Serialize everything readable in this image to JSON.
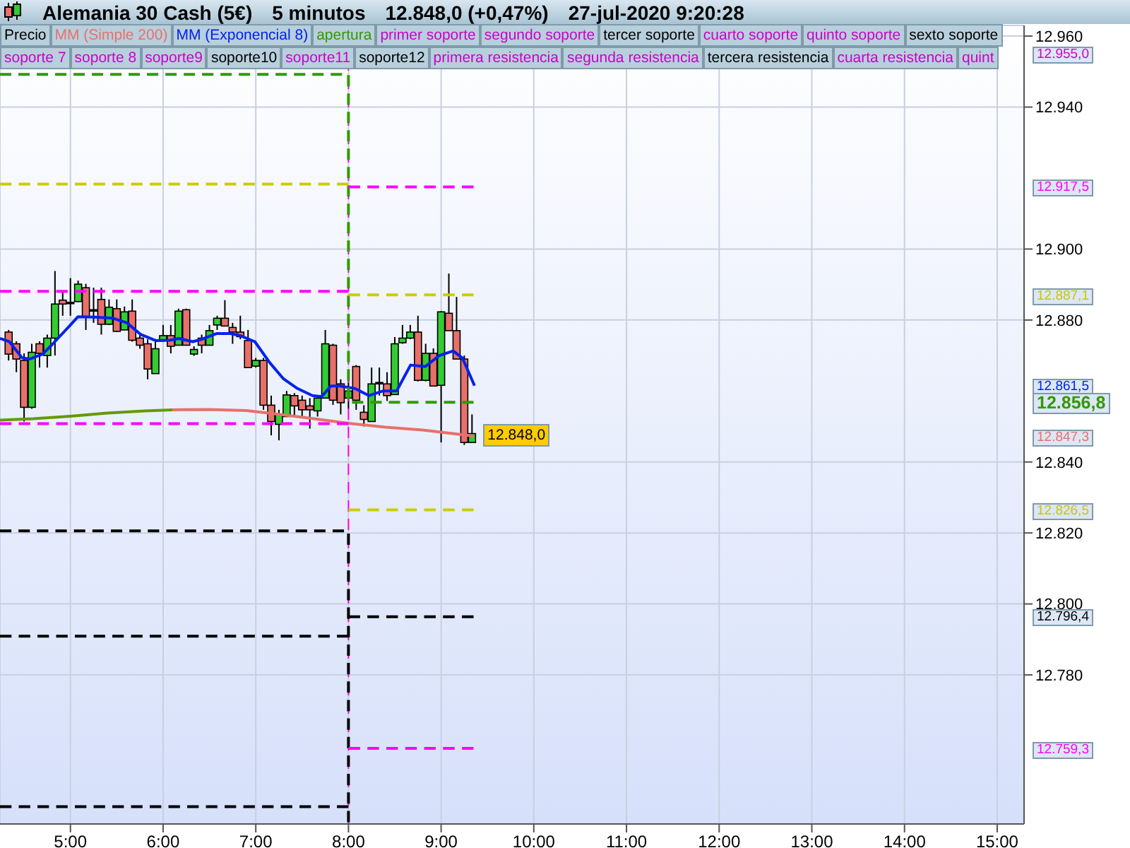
{
  "chart_data": {
    "type": "candlestick",
    "title": "Alemania 30 Cash (5€)",
    "subtitle": "5 minutos",
    "x": [
      4.3333,
      4.4167,
      4.5,
      4.5833,
      4.6667,
      4.75,
      4.8333,
      4.9167,
      5,
      5.0833,
      5.1667,
      5.25,
      5.3333,
      5.4167,
      5.5,
      5.5833,
      5.6667,
      5.75,
      5.8333,
      5.9167,
      6,
      6.0833,
      6.1667,
      6.25,
      6.3333,
      6.4167,
      6.5,
      6.5833,
      6.6667,
      6.75,
      6.8333,
      6.9167,
      7,
      7.0833,
      7.1667,
      7.25,
      7.3333,
      7.4167,
      7.5,
      7.5833,
      7.6667,
      7.75,
      7.8333,
      7.9167,
      8,
      8.0833,
      8.1667,
      8.25,
      8.3333,
      8.4167,
      8.5,
      8.5833,
      8.6667,
      8.75,
      8.8333,
      8.9167,
      9,
      9.0833,
      9.1667,
      9.25,
      9.3333
    ],
    "ohlc": [
      [
        12876.6,
        12877.2,
        12868.6,
        12870.4
      ],
      [
        12873.3,
        12874,
        12865.3,
        12869
      ],
      [
        12868.6,
        12870.6,
        12851.4,
        12855.4
      ],
      [
        12855.4,
        12873.3,
        12855,
        12870.9
      ],
      [
        12873.3,
        12874,
        12866.6,
        12870.6
      ],
      [
        12870,
        12875.9,
        12866.6,
        12874.9
      ],
      [
        12874.9,
        12893.8,
        12870,
        12884.5
      ],
      [
        12885.6,
        12887.8,
        12881.2,
        12884.5
      ],
      [
        12885,
        12891.8,
        12881.2,
        12885
      ],
      [
        12885.2,
        12891.1,
        12885,
        12890.1
      ],
      [
        12889.1,
        12890.2,
        12877.2,
        12880.8
      ],
      [
        12882.9,
        12889.1,
        12879.2,
        12882.9
      ],
      [
        12885.8,
        12889.1,
        12875.9,
        12878.8
      ],
      [
        12878.8,
        12885.8,
        12878.6,
        12883.6
      ],
      [
        12883.2,
        12885.8,
        12876.6,
        12876.8
      ],
      [
        12877.2,
        12883.8,
        12877.2,
        12882.3
      ],
      [
        12882.5,
        12885.8,
        12873.9,
        12874.3
      ],
      [
        12874.9,
        12875.9,
        12871.9,
        12872.9
      ],
      [
        12873.3,
        12874.6,
        12863.3,
        12866.2
      ],
      [
        12864.9,
        12874.6,
        12864.9,
        12871.9
      ],
      [
        12874.3,
        12878.6,
        12873.9,
        12875.6
      ],
      [
        12875.6,
        12878.6,
        12870.6,
        12872.6
      ],
      [
        12872.9,
        12883.2,
        12872.9,
        12882.5
      ],
      [
        12882.9,
        12883.2,
        12872.9,
        12872.9
      ],
      [
        12870.4,
        12872.6,
        12869.9,
        12871.7
      ],
      [
        12874.9,
        12875.9,
        12870.6,
        12872.9
      ],
      [
        12872.9,
        12878.6,
        12872.9,
        12877
      ],
      [
        12878.6,
        12881.2,
        12877.2,
        12880.5
      ],
      [
        12880.5,
        12885.6,
        12878.3,
        12878.3
      ],
      [
        12877.9,
        12879.2,
        12873.3,
        12876.6
      ],
      [
        12876.6,
        12881.2,
        12874.6,
        12875.3
      ],
      [
        12874.2,
        12877.2,
        12866.6,
        12866.6
      ],
      [
        12867,
        12869.3,
        12866.6,
        12868.6
      ],
      [
        12868.6,
        12869.3,
        12854.7,
        12856
      ],
      [
        12856,
        12858.7,
        12847.5,
        12851.4
      ],
      [
        12850.6,
        12854.7,
        12846.1,
        12853.4
      ],
      [
        12852.8,
        12860,
        12852.8,
        12858.9
      ],
      [
        12858.7,
        12859.4,
        12852.8,
        12855.8
      ],
      [
        12857.4,
        12858.7,
        12852.8,
        12854.7
      ],
      [
        12855.8,
        12858,
        12849.4,
        12854.7
      ],
      [
        12854.4,
        12858.7,
        12852.8,
        12858
      ],
      [
        12858,
        12877.2,
        12858,
        12873.3
      ],
      [
        12872.9,
        12873.3,
        12856.1,
        12857.4
      ],
      [
        12862,
        12863.3,
        12853.4,
        12856.7
      ],
      [
        12858,
        12864,
        12855,
        12860
      ],
      [
        12866.9,
        12867.3,
        12854.7,
        12857.4
      ],
      [
        12854,
        12856,
        12850,
        12852
      ],
      [
        12851.4,
        12866.6,
        12851.4,
        12862
      ],
      [
        12862.4,
        12866.6,
        12858.7,
        12862.4
      ],
      [
        12862,
        12865.3,
        12857.2,
        12858.7
      ],
      [
        12859,
        12875.2,
        12859,
        12873.3
      ],
      [
        12873.6,
        12878.6,
        12873.3,
        12874.9
      ],
      [
        12874.9,
        12878.6,
        12874.6,
        12876.6
      ],
      [
        12876.6,
        12881.2,
        12862.7,
        12863
      ],
      [
        12863,
        12873.3,
        12862.7,
        12870.6
      ],
      [
        12870.6,
        12872,
        12861.4,
        12861.4
      ],
      [
        12861.6,
        12882.5,
        12845.5,
        12882.3
      ],
      [
        12881.9,
        12893.1,
        12877,
        12877
      ],
      [
        12877,
        12886.5,
        12869,
        12869
      ],
      [
        12869,
        12870,
        12844.8,
        12845.5
      ],
      [
        12845.5,
        12853.4,
        12845.5,
        12848
      ]
    ],
    "colors": [
      "#e8706a",
      "#e8706a",
      "#e8706a",
      "#33cc33",
      "#e8706a",
      "#33cc33",
      "#33cc33",
      "#e8706a",
      "#000000",
      "#33cc33",
      "#e8706a",
      "#000000",
      "#e8706a",
      "#33cc33",
      "#e8706a",
      "#33cc33",
      "#e8706a",
      "#e8706a",
      "#e8706a",
      "#33cc33",
      "#33cc33",
      "#e8706a",
      "#33cc33",
      "#e8706a",
      "#33cc33",
      "#e8706a",
      "#33cc33",
      "#33cc33",
      "#e8706a",
      "#e8706a",
      "#e8706a",
      "#e8706a",
      "#33cc33",
      "#e8706a",
      "#e8706a",
      "#33cc33",
      "#33cc33",
      "#e8706a",
      "#e8706a",
      "#e8706a",
      "#33cc33",
      "#33cc33",
      "#e8706a",
      "#e8706a",
      "#33cc33",
      "#e8706a",
      "#e8706a",
      "#33cc33",
      "#000000",
      "#e8706a",
      "#33cc33",
      "#33cc33",
      "#33cc33",
      "#e8706a",
      "#33cc33",
      "#e8706a",
      "#33cc33",
      "#e8706a",
      "#e8706a",
      "#e8706a",
      "#33cc33"
    ],
    "series": [
      {
        "type": "line",
        "color": "#669900",
        "line_style": "solid",
        "x": [
          4.24,
          4.6,
          5.0,
          5.4,
          5.8,
          6.1
        ],
        "values": [
          12851.8,
          12852.2,
          12852.9,
          12853.8,
          12854.4,
          12854.7
        ]
      },
      {
        "type": "line",
        "color": "#e8706a",
        "line_style": "solid",
        "x": [
          6.1,
          6.5,
          6.9,
          7.2,
          7.6,
          8.0,
          8.4,
          8.8,
          9.35
        ],
        "values": [
          12854.7,
          12854.8,
          12854.5,
          12853.6,
          12852.3,
          12850.9,
          12849.8,
          12849,
          12847.3
        ]
      },
      {
        "type": "line",
        "color": "#0022ee",
        "line_style": "solid",
        "x": [
          4.24,
          4.34,
          4.48,
          4.56,
          4.7,
          4.81,
          5.0,
          5.08,
          5.26,
          5.46,
          5.61,
          5.76,
          5.92,
          6.07,
          6.17,
          6.32,
          6.42,
          6.58,
          6.73,
          6.83,
          6.99,
          7.15,
          7.3,
          7.45,
          7.61,
          7.71,
          7.81,
          7.91,
          8.07,
          8.22,
          8.37,
          8.52,
          8.67,
          8.83,
          8.98,
          9.13,
          9.23,
          9.36
        ],
        "values": [
          12874.8,
          12873.9,
          12869.3,
          12869,
          12870.4,
          12873.3,
          12878.6,
          12880.9,
          12880.8,
          12880.5,
          12879.2,
          12875.9,
          12874.2,
          12874.3,
          12874.8,
          12873.9,
          12874.6,
          12876.2,
          12876.2,
          12875.6,
          12873.9,
          12868,
          12863.4,
          12860.7,
          12858.7,
          12858.4,
          12861.4,
          12861.4,
          12860.7,
          12858.7,
          12860,
          12860,
          12867.3,
          12866.9,
          12870,
          12871.3,
          12869.3,
          12861.5
        ]
      },
      {
        "type": "line",
        "color": "#339900",
        "line_style": "dashed",
        "x": [
          4.24,
          8,
          8,
          9.35
        ],
        "values": [
          12949.2,
          12949.2,
          12856.8,
          12856.8
        ]
      },
      {
        "type": "line",
        "color": "#cccc00",
        "line_style": "dashed",
        "x": [
          4.24,
          8
        ],
        "values": [
          12918.3,
          12918.3
        ]
      },
      {
        "type": "line",
        "color": "#ff00ff",
        "line_style": "dashed",
        "x": [
          4.24,
          8
        ],
        "values": [
          12888.1,
          12888.1
        ]
      },
      {
        "type": "line",
        "color": "#ff00ff",
        "line_style": "dashed",
        "x": [
          4.24,
          8
        ],
        "values": [
          12850.8,
          12850.8
        ]
      },
      {
        "type": "line",
        "color": "#000000",
        "line_style": "dashed",
        "x": [
          4.24,
          8,
          8
        ],
        "values": [
          12820.6,
          12820.6,
          12738.5
        ]
      },
      {
        "type": "line",
        "color": "#000000",
        "line_style": "dashed",
        "x": [
          4.24,
          8
        ],
        "values": [
          12790.9,
          12790.9
        ]
      },
      {
        "type": "line",
        "color": "#000000",
        "line_style": "dashed",
        "x": [
          4.24,
          8
        ],
        "values": [
          12742.9,
          12742.9
        ]
      },
      {
        "type": "line",
        "color": "#ff00ff",
        "line_style": "dashed",
        "x": [
          8,
          9.35
        ],
        "values": [
          12917.5,
          12917.5
        ]
      },
      {
        "type": "line",
        "color": "#cccc00",
        "line_style": "dashed",
        "x": [
          8,
          9.35
        ],
        "values": [
          12887.1,
          12887.1
        ]
      },
      {
        "type": "line",
        "color": "#cccc00",
        "line_style": "dashed",
        "x": [
          8,
          9.35
        ],
        "values": [
          12826.5,
          12826.5
        ]
      },
      {
        "type": "line",
        "color": "#000000",
        "line_style": "dashed",
        "x": [
          8,
          9.35
        ],
        "values": [
          12796.4,
          12796.4
        ]
      },
      {
        "type": "line",
        "color": "#ff00ff",
        "line_style": "dashed",
        "x": [
          8,
          9.35
        ],
        "values": [
          12759.3,
          12759.3
        ]
      }
    ],
    "ref_lines": [
      {
        "axis": "x",
        "value": 8,
        "color": "#ff00ff",
        "line_style": "dashed"
      }
    ],
    "xlim": [
      4.24,
      15.29
    ],
    "xticks": [
      {
        "value": 5,
        "label": "5:00"
      },
      {
        "value": 6,
        "label": "6:00"
      },
      {
        "value": 7,
        "label": "7:00"
      },
      {
        "value": 8,
        "label": "8:00"
      },
      {
        "value": 9,
        "label": "9:00"
      },
      {
        "value": 10,
        "label": "10:00"
      },
      {
        "value": 11,
        "label": "11:00"
      },
      {
        "value": 12,
        "label": "12:00"
      },
      {
        "value": 13,
        "label": "13:00"
      },
      {
        "value": 14,
        "label": "14:00"
      },
      {
        "value": 15,
        "label": "15:00"
      }
    ],
    "ylim": [
      12738,
      12963
    ],
    "yticks": [
      {
        "value": 12780,
        "label": "12.780"
      },
      {
        "value": 12800,
        "label": "12.800"
      },
      {
        "value": 12820,
        "label": "12.820"
      },
      {
        "value": 12840,
        "label": "12.840"
      },
      {
        "value": 12880,
        "label": "12.880"
      },
      {
        "value": 12900,
        "label": "12.900"
      },
      {
        "value": 12940,
        "label": "12.940"
      },
      {
        "value": 12960,
        "label": "12.960"
      }
    ],
    "grid": true,
    "annotations": [
      "12.848,0 (+0,47%)",
      "27-jul-2020 9:20:28",
      "Precio",
      "MM (Simple 200)",
      "MM (Exponencial 8)",
      "apertura",
      "primer soporte",
      "segundo soporte",
      "tercer soporte",
      "cuarto soporte",
      "quinto soporte",
      "sexto soporte",
      "soporte 7",
      "soporte 8",
      "soporte9",
      "soporte10",
      "soporte11",
      "soporte12",
      "primera resistencia",
      "segunda resistencia",
      "tercera resistencia",
      "cuarta resistencia",
      "quint",
      {
        "text": "12.848,0",
        "x": 9.3333,
        "y": 12848
      }
    ],
    "y2lim": [
      12738,
      12963
    ],
    "y2ticks": [
      {
        "value": 12955,
        "label": "12.955,0"
      },
      {
        "value": 12917.5,
        "label": "12.917,5"
      },
      {
        "value": 12887.1,
        "label": "12.887,1"
      },
      {
        "value": 12861.5,
        "label": "12.861,5"
      },
      {
        "value": 12856.8,
        "label": "12.856,8"
      },
      {
        "value": 12847.3,
        "label": "12.847,3"
      },
      {
        "value": 12826.5,
        "label": "12.826,5"
      },
      {
        "value": 12796.4,
        "label": "12.796,4"
      },
      {
        "value": 12759.3,
        "label": "12.759,3"
      }
    ]
  }
}
